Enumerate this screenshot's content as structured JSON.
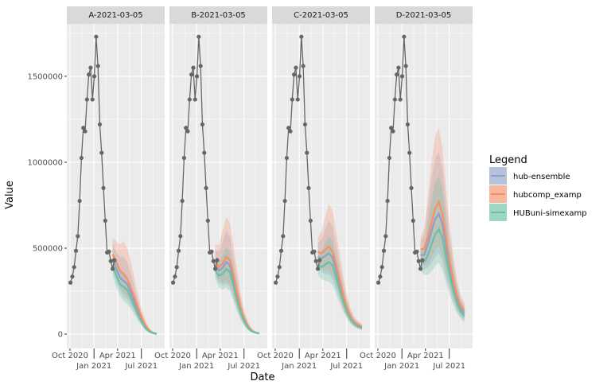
{
  "chart_data": {
    "type": "line",
    "xlabel": "Date",
    "ylabel": "Value",
    "xlim": [
      "2020-09-19",
      "2021-09-28"
    ],
    "ylim": [
      -83000,
      1805000
    ],
    "x_ticks": [
      "2020-10-01",
      "2021-01-01",
      "2021-04-01",
      "2021-07-01"
    ],
    "x_tick_labels": [
      "Oct 2020",
      "Jan 2021",
      "Apr 2021",
      "Jul 2021"
    ],
    "y_ticks": [
      0,
      500000,
      1000000,
      1500000
    ],
    "y_tick_labels": [
      "0",
      "500000",
      "1000000",
      "1500000"
    ],
    "grid": true,
    "legend": {
      "title": "Legend",
      "position": "right",
      "entries": [
        {
          "name": "hub-ensemble",
          "color": "#8DA0CB"
        },
        {
          "name": "hubcomp_examp",
          "color": "#FC8D62"
        },
        {
          "name": "HUBuni-simexamp",
          "color": "#66C2A5"
        }
      ]
    },
    "observed": {
      "color": "#666666",
      "x": [
        "2020-10-03",
        "2020-10-10",
        "2020-10-17",
        "2020-10-24",
        "2020-10-31",
        "2020-11-07",
        "2020-11-14",
        "2020-11-21",
        "2020-11-28",
        "2020-12-05",
        "2020-12-12",
        "2020-12-19",
        "2020-12-26",
        "2021-01-02",
        "2021-01-09",
        "2021-01-16",
        "2021-01-23",
        "2021-01-30",
        "2021-02-06",
        "2021-02-13",
        "2021-02-20",
        "2021-02-27",
        "2021-03-06",
        "2021-03-13",
        "2021-03-20"
      ],
      "y": [
        300000,
        335000,
        390000,
        485000,
        570000,
        775000,
        1025000,
        1200000,
        1180000,
        1365000,
        1510000,
        1550000,
        1365000,
        1500000,
        1730000,
        1560000,
        1220000,
        1055000,
        850000,
        660000,
        475000,
        480000,
        425000,
        380000,
        430000
      ]
    },
    "forecast_x": [
      "2021-03-13",
      "2021-03-27",
      "2021-04-10",
      "2021-04-24",
      "2021-05-08",
      "2021-05-22",
      "2021-06-05",
      "2021-06-19",
      "2021-07-03",
      "2021-07-17",
      "2021-07-31",
      "2021-08-14",
      "2021-08-28"
    ],
    "panels": [
      {
        "title": "A-2021-03-05",
        "series": [
          {
            "name": "hub-ensemble",
            "median": [
              440000,
              380000,
              330000,
              310000,
              290000,
              240000,
              185000,
              130000,
              80000,
              42000,
              18000,
              7000,
              3000
            ],
            "upper": [
              530000,
              480000,
              450000,
              450000,
              420000,
              350000,
              270000,
              190000,
              115000,
              60000,
              27000,
              10000,
              4000
            ],
            "lower": [
              370000,
              300000,
              250000,
              220000,
              200000,
              165000,
              125000,
              85000,
              52000,
              26000,
              10000,
              3000,
              1000
            ]
          },
          {
            "name": "hubcomp_examp",
            "median": [
              465000,
              420000,
              370000,
              350000,
              320000,
              270000,
              210000,
              150000,
              95000,
              50000,
              22000,
              8000,
              3000
            ],
            "upper": [
              560000,
              540000,
              520000,
              540000,
              500000,
              420000,
              320000,
              220000,
              140000,
              75000,
              35000,
              12000,
              5000
            ],
            "lower": [
              400000,
              330000,
              270000,
              240000,
              220000,
              180000,
              140000,
              100000,
              60000,
              30000,
              12000,
              4000,
              1000
            ]
          },
          {
            "name": "HUBuni-simexamp",
            "median": [
              400000,
              340000,
              290000,
              275000,
              255000,
              210000,
              160000,
              110000,
              68000,
              35000,
              15000,
              6000,
              2000
            ],
            "upper": [
              470000,
              420000,
              370000,
              360000,
              340000,
              280000,
              215000,
              150000,
              95000,
              50000,
              22000,
              9000,
              3000
            ],
            "lower": [
              340000,
              270000,
              220000,
              195000,
              175000,
              145000,
              110000,
              75000,
              45000,
              22000,
              9000,
              3000,
              1000
            ]
          }
        ]
      },
      {
        "title": "B-2021-03-05",
        "series": [
          {
            "name": "hub-ensemble",
            "median": [
              400000,
              370000,
              385000,
              420000,
              400000,
              310000,
              220000,
              140000,
              80000,
              40000,
              18000,
              9000,
              4000
            ],
            "upper": [
              490000,
              480000,
              540000,
              600000,
              570000,
              450000,
              320000,
              200000,
              115000,
              60000,
              28000,
              13000,
              6000
            ],
            "lower": [
              345000,
              295000,
              285000,
              295000,
              275000,
              210000,
              145000,
              90000,
              50000,
              25000,
              11000,
              5000,
              2000
            ]
          },
          {
            "name": "hubcomp_examp",
            "median": [
              420000,
              390000,
              410000,
              450000,
              430000,
              340000,
              240000,
              150000,
              85000,
              45000,
              20000,
              10000,
              5000
            ],
            "upper": [
              520000,
              520000,
              600000,
              680000,
              650000,
              520000,
              370000,
              230000,
              130000,
              70000,
              32000,
              15000,
              8000
            ],
            "lower": [
              360000,
              310000,
              300000,
              310000,
              290000,
              225000,
              155000,
              95000,
              55000,
              28000,
              12000,
              6000,
              3000
            ]
          },
          {
            "name": "HUBuni-simexamp",
            "median": [
              370000,
              340000,
              350000,
              380000,
              360000,
              280000,
              195000,
              125000,
              70000,
              35000,
              16000,
              8000,
              4000
            ],
            "upper": [
              440000,
              420000,
              460000,
              510000,
              480000,
              380000,
              270000,
              170000,
              98000,
              50000,
              23000,
              11000,
              5000
            ],
            "lower": [
              320000,
              270000,
              260000,
              270000,
              250000,
              190000,
              130000,
              80000,
              45000,
              22000,
              10000,
              5000,
              2000
            ]
          }
        ]
      },
      {
        "title": "C-2021-03-05",
        "series": [
          {
            "name": "hub-ensemble",
            "median": [
              450000,
              440000,
              455000,
              470000,
              445000,
              370000,
              285000,
              205000,
              140000,
              95000,
              65000,
              50000,
              40000
            ],
            "upper": [
              530000,
              550000,
              610000,
              660000,
              630000,
              520000,
              400000,
              290000,
              195000,
              130000,
              90000,
              70000,
              55000
            ],
            "lower": [
              390000,
              360000,
              350000,
              345000,
              320000,
              262000,
              200000,
              142000,
              96000,
              64000,
              44000,
              34000,
              27000
            ]
          },
          {
            "name": "hubcomp_examp",
            "median": [
              480000,
              470000,
              490000,
              510000,
              480000,
              400000,
              310000,
              220000,
              150000,
              100000,
              70000,
              55000,
              45000
            ],
            "upper": [
              560000,
              600000,
              680000,
              760000,
              720000,
              600000,
              460000,
              330000,
              220000,
              145000,
              100000,
              78000,
              62000
            ],
            "lower": [
              410000,
              380000,
              370000,
              370000,
              340000,
              280000,
              215000,
              150000,
              100000,
              66000,
              46000,
              36000,
              29000
            ]
          },
          {
            "name": "HUBuni-simexamp",
            "median": [
              400000,
              390000,
              405000,
              420000,
              400000,
              330000,
              255000,
              185000,
              125000,
              85000,
              58000,
              45000,
              35000
            ],
            "upper": [
              470000,
              480000,
              530000,
              570000,
              540000,
              450000,
              350000,
              255000,
              172000,
              116000,
              80000,
              62000,
              48000
            ],
            "lower": [
              345000,
              320000,
              310000,
              305000,
              285000,
              232000,
              178000,
              128000,
              86000,
              58000,
              39000,
              30000,
              23000
            ]
          }
        ]
      },
      {
        "title": "D-2021-03-05",
        "series": [
          {
            "name": "hub-ensemble",
            "median": [
              460000,
              460000,
              520000,
              600000,
              670000,
              700000,
              640000,
              500000,
              385000,
              285000,
              205000,
              150000,
              120000
            ],
            "upper": [
              530000,
              580000,
              730000,
              900000,
              1020000,
              1060000,
              960000,
              750000,
              565000,
              410000,
              290000,
              210000,
              165000
            ],
            "lower": [
              400000,
              375000,
              385000,
              415000,
              450000,
              470000,
              425000,
              330000,
              255000,
              190000,
              135000,
              100000,
              80000
            ]
          },
          {
            "name": "hubcomp_examp",
            "median": [
              495000,
              495000,
              560000,
              650000,
              730000,
              770000,
              700000,
              550000,
              420000,
              310000,
              220000,
              165000,
              135000
            ],
            "upper": [
              560000,
              620000,
              800000,
              1000000,
              1150000,
              1200000,
              1080000,
              840000,
              630000,
              450000,
              310000,
              225000,
              180000
            ],
            "lower": [
              430000,
              400000,
              410000,
              450000,
              490000,
              510000,
              460000,
              360000,
              275000,
              205000,
              145000,
              110000,
              90000
            ]
          },
          {
            "name": "HUBuni-simexamp",
            "median": [
              420000,
              420000,
              460000,
              520000,
              580000,
              610000,
              560000,
              440000,
              340000,
              250000,
              180000,
              130000,
              105000
            ],
            "upper": [
              480000,
              520000,
              640000,
              780000,
              880000,
              920000,
              840000,
              660000,
              500000,
              360000,
              255000,
              185000,
              148000
            ],
            "lower": [
              365000,
              345000,
              345000,
              365000,
              395000,
              415000,
              375000,
              295000,
              225000,
              168000,
              120000,
              88000,
              70000
            ]
          }
        ]
      }
    ]
  }
}
